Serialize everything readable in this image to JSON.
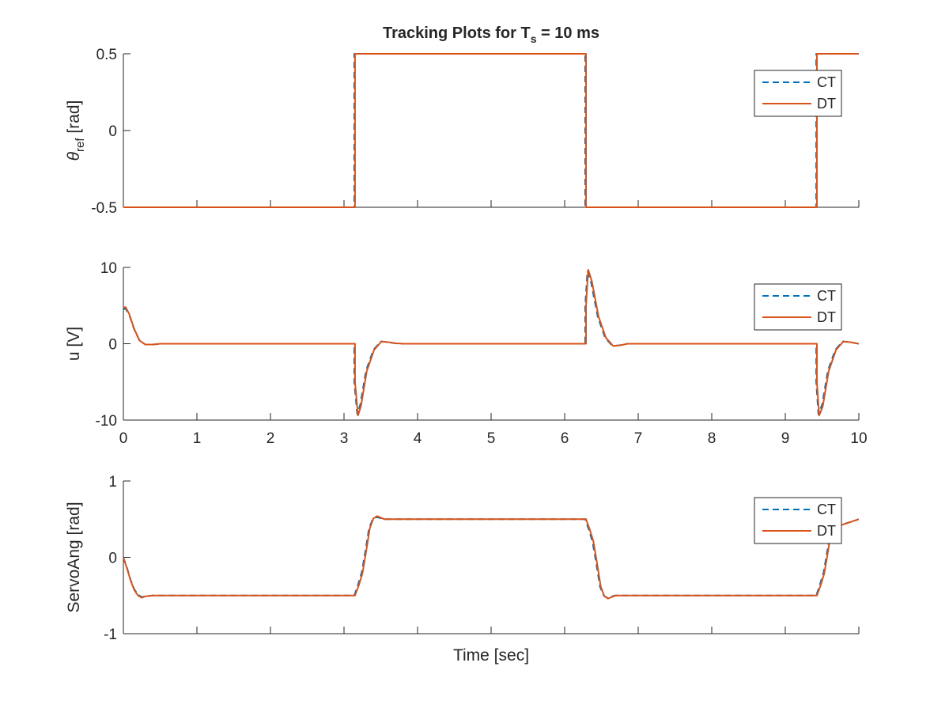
{
  "chart_data": [
    {
      "type": "line",
      "title": "Tracking Plots for T_s = 10 ms",
      "title_parts": {
        "main": "Tracking Plots for T",
        "sub": "s",
        "tail": " = 10 ms"
      },
      "ylabel": "θ_ref [rad]",
      "ylabel_parts": {
        "main": "θ",
        "sub": "ref",
        "tail": " [rad]"
      },
      "xlabel": "",
      "xlim": [
        0,
        10
      ],
      "ylim": [
        -0.5,
        0.5
      ],
      "yticks": [
        -0.5,
        0,
        0.5
      ],
      "ytick_labels": [
        "-0.5",
        "0",
        "0.5"
      ],
      "show_xtick_labels": false,
      "legend": {
        "position": "top-right",
        "entries": [
          "CT",
          "DT"
        ]
      },
      "series": [
        {
          "name": "CT",
          "style": "dashed",
          "color": "#0072BD",
          "x": [
            0,
            3.14,
            3.14,
            6.28,
            6.28,
            9.42,
            9.42,
            10
          ],
          "y": [
            -0.5,
            -0.5,
            0.5,
            0.5,
            -0.5,
            -0.5,
            0.5,
            0.5
          ]
        },
        {
          "name": "DT",
          "style": "solid",
          "color": "#D95319",
          "x": [
            0,
            3.15,
            3.15,
            6.29,
            6.29,
            9.43,
            9.43,
            10
          ],
          "y": [
            -0.5,
            -0.5,
            0.5,
            0.5,
            -0.5,
            -0.5,
            0.5,
            0.5
          ]
        }
      ]
    },
    {
      "type": "line",
      "title": "",
      "ylabel": "u [V]",
      "xlabel": "",
      "xlim": [
        0,
        10
      ],
      "ylim": [
        -10,
        10
      ],
      "yticks": [
        -10,
        0,
        10
      ],
      "ytick_labels": [
        "-10",
        "0",
        "10"
      ],
      "xticks": [
        0,
        1,
        2,
        3,
        4,
        5,
        6,
        7,
        8,
        9,
        10
      ],
      "xtick_labels": [
        "0",
        "1",
        "2",
        "3",
        "4",
        "5",
        "6",
        "7",
        "8",
        "9",
        "10"
      ],
      "show_xtick_labels": true,
      "legend": {
        "position": "top-right",
        "entries": [
          "CT",
          "DT"
        ]
      },
      "series": [
        {
          "name": "CT",
          "style": "dashed",
          "color": "#0072BD",
          "x": [
            0,
            0.03,
            0.08,
            0.15,
            0.22,
            0.3,
            0.4,
            0.5,
            3.14,
            3.14,
            3.18,
            3.22,
            3.3,
            3.4,
            3.5,
            3.6,
            3.7,
            3.8,
            6.28,
            6.28,
            6.31,
            6.36,
            6.45,
            6.55,
            6.65,
            6.75,
            6.85,
            9.42,
            9.42,
            9.45,
            9.5,
            9.58,
            9.68,
            9.78,
            9.88,
            10
          ],
          "y": [
            4.5,
            4.6,
            3.8,
            1.8,
            0.4,
            -0.1,
            -0.1,
            0,
            0,
            -5,
            -9.2,
            -8.0,
            -3.5,
            -0.8,
            0.3,
            0.2,
            0.05,
            0,
            0,
            5,
            9.5,
            8.0,
            3.5,
            0.8,
            -0.3,
            -0.2,
            0,
            0,
            -5,
            -9.2,
            -8.0,
            -3.5,
            -0.8,
            0.3,
            0.2,
            0
          ]
        },
        {
          "name": "DT",
          "style": "solid",
          "color": "#D95319",
          "x": [
            0,
            0.03,
            0.08,
            0.15,
            0.22,
            0.3,
            0.4,
            0.5,
            3.15,
            3.15,
            3.19,
            3.23,
            3.31,
            3.41,
            3.51,
            3.61,
            3.71,
            3.81,
            6.29,
            6.29,
            6.32,
            6.37,
            6.46,
            6.56,
            6.66,
            6.76,
            6.86,
            9.43,
            9.43,
            9.46,
            9.51,
            9.59,
            9.69,
            9.79,
            9.89,
            10
          ],
          "y": [
            4.7,
            4.8,
            3.9,
            1.9,
            0.4,
            -0.1,
            -0.1,
            0,
            0,
            -5,
            -9.4,
            -8.2,
            -3.6,
            -0.8,
            0.3,
            0.2,
            0.05,
            0,
            0,
            5,
            9.7,
            8.2,
            3.6,
            0.8,
            -0.3,
            -0.2,
            0,
            0,
            -5,
            -9.4,
            -8.2,
            -3.6,
            -0.8,
            0.3,
            0.2,
            0
          ]
        }
      ]
    },
    {
      "type": "line",
      "title": "",
      "ylabel": "ServoAng [rad]",
      "xlabel": "Time [sec]",
      "xlim": [
        0,
        10
      ],
      "ylim": [
        -1,
        1
      ],
      "yticks": [
        -1,
        0,
        1
      ],
      "ytick_labels": [
        "-1",
        "0",
        "1"
      ],
      "show_xtick_labels": false,
      "legend": {
        "position": "top-right",
        "entries": [
          "CT",
          "DT"
        ]
      },
      "series": [
        {
          "name": "CT",
          "style": "dashed",
          "color": "#0072BD",
          "x": [
            0,
            0.05,
            0.1,
            0.15,
            0.2,
            0.25,
            0.3,
            0.4,
            3.14,
            3.19,
            3.24,
            3.29,
            3.34,
            3.39,
            3.44,
            3.54,
            6.28,
            6.33,
            6.38,
            6.43,
            6.48,
            6.53,
            6.58,
            6.68,
            9.42,
            9.47,
            9.52,
            9.57,
            9.62,
            10
          ],
          "y": [
            0,
            -0.14,
            -0.3,
            -0.42,
            -0.49,
            -0.52,
            -0.51,
            -0.5,
            -0.5,
            -0.36,
            -0.2,
            0.08,
            0.38,
            0.5,
            0.53,
            0.5,
            0.5,
            0.36,
            0.2,
            -0.08,
            -0.38,
            -0.5,
            -0.53,
            -0.5,
            -0.5,
            -0.36,
            -0.2,
            0.08,
            0.38,
            0.5
          ]
        },
        {
          "name": "DT",
          "style": "solid",
          "color": "#D95319",
          "x": [
            0,
            0.05,
            0.1,
            0.15,
            0.2,
            0.25,
            0.3,
            0.4,
            3.15,
            3.2,
            3.25,
            3.3,
            3.35,
            3.4,
            3.45,
            3.55,
            6.29,
            6.34,
            6.39,
            6.44,
            6.49,
            6.54,
            6.59,
            6.69,
            9.43,
            9.48,
            9.53,
            9.58,
            9.63,
            10
          ],
          "y": [
            0,
            -0.15,
            -0.31,
            -0.43,
            -0.5,
            -0.53,
            -0.51,
            -0.5,
            -0.5,
            -0.37,
            -0.21,
            0.07,
            0.38,
            0.51,
            0.54,
            0.5,
            0.5,
            0.37,
            0.21,
            -0.07,
            -0.38,
            -0.51,
            -0.54,
            -0.5,
            -0.5,
            -0.37,
            -0.21,
            0.07,
            0.38,
            0.5
          ]
        }
      ]
    }
  ]
}
